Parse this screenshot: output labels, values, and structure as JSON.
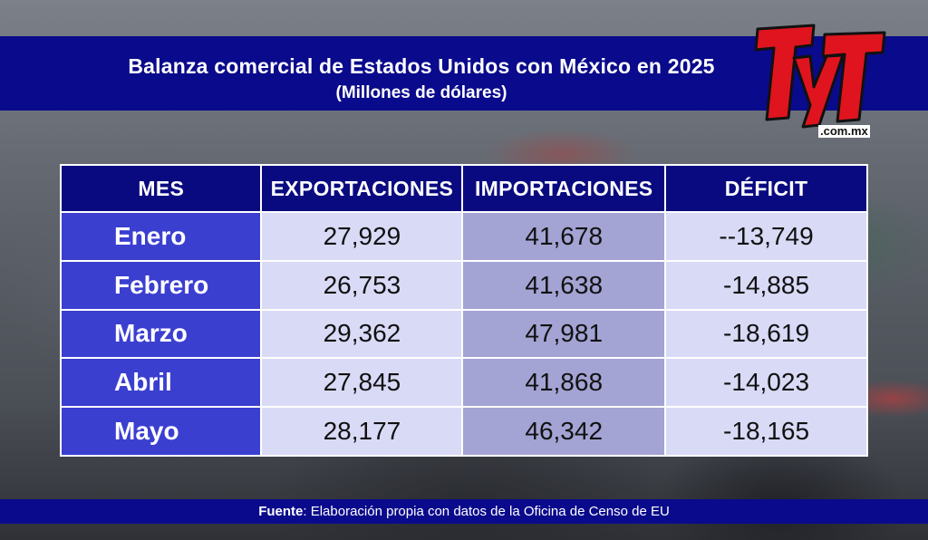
{
  "header": {
    "title": "Balanza comercial de Estados Unidos con México en 2025",
    "subtitle": "(Millones de dólares)"
  },
  "logo": {
    "mark": "TyT",
    "domain": ".com.mx"
  },
  "table": {
    "headers": [
      "MES",
      "EXPORTACIONES",
      "IMPORTACIONES",
      "DÉFICIT"
    ],
    "rows": [
      {
        "mes": "Enero",
        "exportaciones": "27,929",
        "importaciones": "41,678",
        "deficit": "--13,749"
      },
      {
        "mes": "Febrero",
        "exportaciones": "26,753",
        "importaciones": "41,638",
        "deficit": "-14,885"
      },
      {
        "mes": "Marzo",
        "exportaciones": "29,362",
        "importaciones": "47,981",
        "deficit": "-18,619"
      },
      {
        "mes": "Abril",
        "exportaciones": "27,845",
        "importaciones": "41,868",
        "deficit": "-14,023"
      },
      {
        "mes": "Mayo",
        "exportaciones": "28,177",
        "importaciones": "46,342",
        "deficit": "-18,165"
      }
    ]
  },
  "footer": {
    "label": "Fuente",
    "text": ": Elaboración propia con datos de la Oficina de Censo de EU"
  },
  "colors": {
    "header_blue": "#0a0a8c",
    "month_cell": "#3b3fd0",
    "light_cell": "#d9daf6",
    "import_cell": "#a3a3d4",
    "logo_red": "#e0141e"
  }
}
